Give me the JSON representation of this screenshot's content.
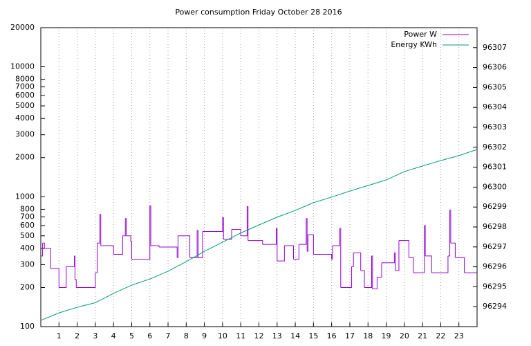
{
  "chart_data": {
    "type": "line",
    "title": "Power consumption Friday October 28 2016",
    "xlim": [
      0,
      24
    ],
    "xticks": [
      1,
      2,
      3,
      4,
      5,
      6,
      7,
      8,
      9,
      10,
      11,
      12,
      13,
      14,
      15,
      16,
      17,
      18,
      19,
      20,
      21,
      22,
      23
    ],
    "ylim": [
      100,
      20000
    ],
    "yticks": [
      100,
      200,
      300,
      400,
      500,
      600,
      700,
      800,
      1000,
      2000,
      3000,
      4000,
      5000,
      6000,
      7000,
      8000,
      10000,
      20000
    ],
    "log_y": true,
    "y2lim": [
      96293,
      96308
    ],
    "y2ticks": [
      96294,
      96295,
      96296,
      96297,
      96298,
      96299,
      96300,
      96301,
      96302,
      96303,
      96304,
      96305,
      96306,
      96307
    ],
    "xgrid": true,
    "legend": "top-right",
    "series": [
      {
        "name": "Power W",
        "color": "#9400d3",
        "step": true,
        "x": [
          0,
          0.1,
          0.2,
          0.55,
          1.0,
          1.4,
          1.85,
          1.88,
          1.95,
          3.0,
          3.1,
          3.25,
          3.3,
          4.0,
          4.5,
          4.65,
          4.7,
          4.95,
          5.0,
          6.0,
          6.05,
          6.5,
          7.5,
          7.55,
          8.2,
          8.6,
          8.65,
          8.9,
          10.0,
          10.05,
          10.5,
          11.0,
          11.35,
          11.4,
          12.2,
          12.95,
          13.0,
          13.4,
          13.9,
          14.2,
          14.6,
          14.65,
          14.7,
          15.0,
          16.0,
          16.05,
          16.45,
          16.5,
          17.1,
          17.2,
          17.6,
          17.8,
          18.2,
          18.25,
          18.5,
          18.75,
          19.45,
          19.5,
          19.7,
          20.25,
          20.5,
          21.1,
          21.15,
          21.5,
          22.4,
          22.5,
          22.55,
          22.8,
          23.3,
          24
        ],
        "values": [
          350,
          440,
          400,
          280,
          200,
          290,
          350,
          230,
          200,
          260,
          440,
          730,
          420,
          360,
          500,
          680,
          500,
          450,
          330,
          850,
          420,
          410,
          340,
          500,
          340,
          550,
          340,
          540,
          690,
          470,
          560,
          500,
          840,
          460,
          430,
          570,
          320,
          420,
          330,
          430,
          680,
          380,
          510,
          360,
          330,
          420,
          570,
          200,
          290,
          370,
          270,
          200,
          350,
          195,
          240,
          310,
          370,
          270,
          460,
          340,
          260,
          600,
          350,
          260,
          350,
          790,
          440,
          340,
          260,
          260
        ]
      },
      {
        "name": "Energy KWh",
        "color": "#009e73",
        "axis": "y2",
        "x": [
          0,
          1,
          2,
          3,
          4,
          5,
          6,
          7,
          8,
          9,
          10,
          11,
          12,
          13,
          14,
          15,
          16,
          17,
          18,
          19,
          20,
          21,
          22,
          23,
          24
        ],
        "values": [
          96293.31,
          96293.69,
          96293.97,
          96294.2,
          96294.67,
          96295.08,
          96295.39,
          96295.78,
          96296.26,
          96296.78,
          96297.24,
          96297.7,
          96298.1,
          96298.49,
          96298.83,
          96299.22,
          96299.5,
          96299.8,
          96300.08,
          96300.36,
          96300.78,
          96301.06,
          96301.33,
          96301.58,
          96301.89
        ]
      }
    ]
  }
}
